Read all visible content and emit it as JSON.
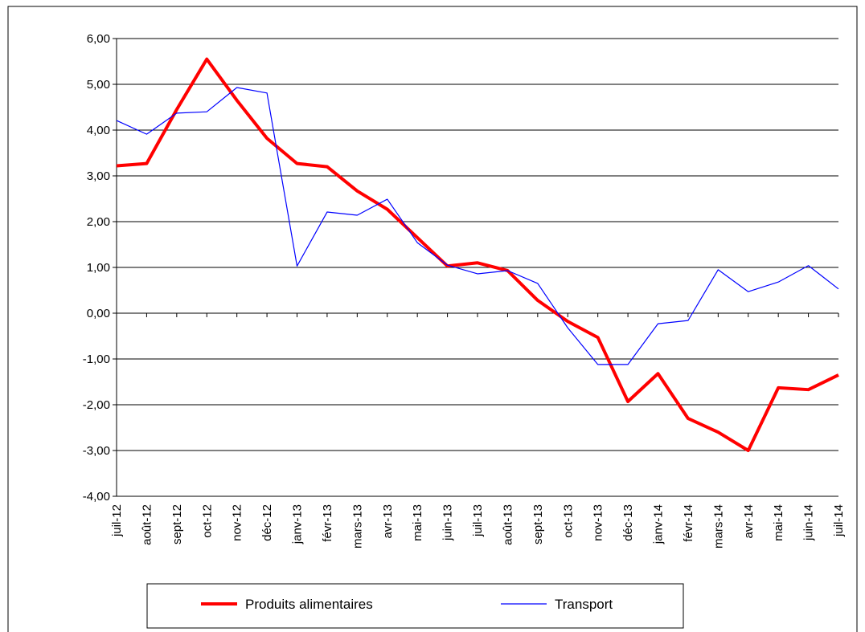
{
  "chart_data": {
    "type": "line",
    "categories": [
      "juil-12",
      "août-12",
      "sept-12",
      "oct-12",
      "nov-12",
      "déc-12",
      "janv-13",
      "févr-13",
      "mars-13",
      "avr-13",
      "mai-13",
      "juin-13",
      "juil-13",
      "août-13",
      "sept-13",
      "oct-13",
      "nov-13",
      "déc-13",
      "janv-14",
      "févr-14",
      "mars-14",
      "avr-14",
      "mai-14",
      "juin-14",
      "juil-14"
    ],
    "series": [
      {
        "name": "Produits alimentaires",
        "color": "#ff0000",
        "values": [
          3.22,
          3.27,
          4.45,
          5.55,
          4.65,
          3.82,
          3.27,
          3.2,
          2.67,
          2.27,
          1.65,
          1.03,
          1.1,
          0.93,
          0.28,
          -0.18,
          -0.53,
          -1.93,
          -1.32,
          -2.3,
          -2.6,
          -3.0,
          -1.63,
          -1.67,
          -1.35
        ]
      },
      {
        "name": "Transport",
        "color": "#0000ff",
        "values": [
          4.21,
          3.91,
          4.37,
          4.4,
          4.93,
          4.81,
          1.03,
          2.21,
          2.14,
          2.49,
          1.54,
          1.05,
          0.86,
          0.93,
          0.65,
          -0.32,
          -1.12,
          -1.12,
          -0.23,
          -0.16,
          0.95,
          0.47,
          0.68,
          1.04,
          0.53
        ]
      }
    ],
    "ylim": [
      -4,
      6
    ],
    "yticks": [
      {
        "value": -4,
        "label": "-4,00"
      },
      {
        "value": -3,
        "label": "-3,00"
      },
      {
        "value": -2,
        "label": "-2,00"
      },
      {
        "value": -1,
        "label": "-1,00"
      },
      {
        "value": 0,
        "label": "0,00"
      },
      {
        "value": 1,
        "label": "1,00"
      },
      {
        "value": 2,
        "label": "2,00"
      },
      {
        "value": 3,
        "label": "3,00"
      },
      {
        "value": 4,
        "label": "4,00"
      },
      {
        "value": 5,
        "label": "5,00"
      },
      {
        "value": 6,
        "label": "6,00"
      }
    ],
    "grid": true
  }
}
